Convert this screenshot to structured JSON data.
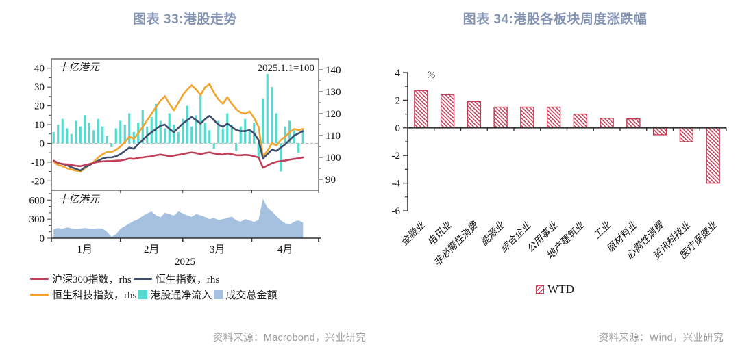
{
  "titles": {
    "fig33": "图表 33:港股走势",
    "fig34": "图表 34:港股各板块周度涨跌幅"
  },
  "sources": {
    "fig33": "资料来源：Macrobond，兴业研究",
    "fig34": "资料来源：Wind，兴业研究"
  },
  "colors": {
    "title": "#8393b1",
    "axis": "#3a3a3a",
    "dashed_zero": "#b3b3b3",
    "source_text": "#9c9c9c"
  },
  "legend33": {
    "rows": [
      [
        {
          "type": "line",
          "color": "#c03e57",
          "label": "沪深300指数，rhs"
        },
        {
          "type": "line",
          "color": "#3d4d6e",
          "label": "恒生指数，rhs"
        }
      ],
      [
        {
          "type": "line",
          "color": "#f2a42e",
          "label": "恒生科技指数，rhs"
        },
        {
          "type": "square",
          "color": "#55dacf",
          "label": "港股通净流入"
        },
        {
          "type": "square",
          "color": "#a6c1df",
          "label": "成交总金额"
        }
      ]
    ]
  },
  "chart_data": [
    {
      "id": "hk-market-trend-main",
      "type": "line+bar",
      "unit_label": "十亿港元",
      "annotation": "2025.1.1=100",
      "x_months": [
        "1月",
        "2月",
        "3月",
        "4月"
      ],
      "x_year": "2025",
      "month_boundary_days": [
        1,
        32,
        60,
        91,
        121
      ],
      "month_center_days": [
        16,
        46,
        75.5,
        106
      ],
      "left_axis": {
        "ticks": [
          -20,
          -10,
          0,
          10,
          20,
          30,
          40
        ],
        "range": [
          -25,
          45
        ],
        "minor_step": 5
      },
      "right_axis": {
        "ticks": [
          90,
          100,
          110,
          120,
          130,
          140
        ],
        "range": [
          85,
          145
        ],
        "minor_step": 5
      },
      "x_days": {
        "start": 2,
        "step": 2,
        "count": 57
      },
      "bars": {
        "name": "港股通净流入",
        "axis": "left",
        "color": "#55dacf",
        "values": [
          6,
          10,
          13,
          8,
          5,
          12,
          9,
          15,
          11,
          7,
          13,
          9,
          4,
          -2,
          8,
          12,
          10,
          16,
          6,
          11,
          18,
          9,
          14,
          21,
          12,
          8,
          16,
          10,
          6,
          13,
          20,
          9,
          15,
          26,
          11,
          7,
          -3,
          12,
          8,
          16,
          10,
          -4,
          9,
          13,
          7,
          11,
          -8,
          24,
          37,
          30,
          16,
          -15,
          9,
          12,
          7,
          -5,
          8
        ]
      },
      "series": [
        {
          "name": "恒生科技指数，rhs",
          "color": "#f2a42e",
          "values": [
            98,
            96.5,
            96,
            95,
            94.5,
            94,
            93.5,
            95,
            96.5,
            98,
            100,
            101.5,
            102.5,
            102.5,
            103.5,
            105,
            107,
            109.5,
            108.5,
            111,
            114,
            117,
            120,
            123,
            126,
            128,
            124.5,
            121.5,
            125,
            128.5,
            131,
            133,
            131,
            128.5,
            132,
            133.5,
            129.5,
            126.5,
            124.5,
            127.5,
            124.5,
            122,
            120.5,
            120,
            121,
            118,
            114,
            100.5,
            103,
            106.5,
            105.5,
            108,
            109.5,
            111.5,
            113,
            112.5,
            113
          ]
        },
        {
          "name": "恒生指数，rhs",
          "color": "#3d4d6e",
          "values": [
            98.5,
            97.5,
            97,
            96.5,
            95.5,
            94.8,
            94,
            95.5,
            96.5,
            97.5,
            98.5,
            99.5,
            100,
            100,
            100.5,
            101.5,
            103,
            104.5,
            104,
            106,
            108,
            110,
            111.5,
            113,
            114.5,
            115,
            113,
            111.5,
            113.5,
            115.5,
            117,
            118.5,
            117,
            115.5,
            117.5,
            119,
            117,
            115,
            114,
            115.5,
            114,
            112.5,
            112,
            112,
            112.5,
            111,
            108,
            99.5,
            101.5,
            103.5,
            103,
            104.5,
            106,
            108,
            110,
            111,
            112
          ]
        },
        {
          "name": "沪深300指数，rhs",
          "color": "#c03e57",
          "values": [
            98.5,
            97.5,
            97,
            96.8,
            96.5,
            96.2,
            96,
            96.5,
            97,
            97.5,
            98,
            98.2,
            98.3,
            98.3,
            98.5,
            98.6,
            99,
            99.5,
            99.3,
            99.8,
            100,
            100.3,
            100.5,
            101,
            101.3,
            101,
            100.5,
            100.8,
            101.2,
            101.5,
            102,
            102.3,
            102,
            101.5,
            102,
            102.3,
            101.8,
            101.5,
            101.3,
            101.8,
            101.5,
            101,
            101,
            101.2,
            101,
            100.5,
            100,
            95.3,
            96.3,
            97.3,
            98,
            98.3,
            98.6,
            99,
            99.3,
            99.6,
            100
          ]
        }
      ]
    },
    {
      "id": "hk-turnover",
      "type": "area",
      "name": "成交总金额",
      "unit_label": "十亿港元",
      "color": "#a6c1df",
      "y_ticks": [
        0,
        300,
        600
      ],
      "range": [
        0,
        700
      ],
      "minor_step": 100,
      "x_days": {
        "start": 2,
        "step": 2,
        "count": 57
      },
      "values": [
        140,
        160,
        150,
        170,
        155,
        145,
        150,
        160,
        150,
        145,
        155,
        150,
        100,
        20,
        60,
        150,
        190,
        230,
        270,
        300,
        350,
        390,
        420,
        360,
        330,
        400,
        380,
        355,
        420,
        390,
        360,
        335,
        380,
        360,
        335,
        300,
        320,
        285,
        300,
        320,
        340,
        280,
        260,
        300,
        280,
        255,
        290,
        620,
        480,
        420,
        350,
        280,
        235,
        215,
        260,
        280,
        245
      ]
    },
    {
      "id": "hk-sector-wtd",
      "type": "bar",
      "unit_label": "%",
      "legend": "WTD",
      "bar_color": "#c43d55",
      "categories": [
        "金融业",
        "电讯业",
        "非必需性消费",
        "能源业",
        "综合企业",
        "公用事业",
        "地产建筑业",
        "工业",
        "原材料业",
        "必需性消费",
        "资讯科技业",
        "医疗保健业"
      ],
      "values": [
        2.7,
        2.4,
        1.9,
        1.5,
        1.5,
        1.5,
        1.0,
        0.7,
        0.65,
        -0.5,
        -1.0,
        -4.0
      ],
      "ylim": [
        -6,
        4
      ],
      "y_ticks": [
        4,
        2,
        0,
        -2,
        -4,
        -6
      ],
      "minor_step": 1
    }
  ]
}
